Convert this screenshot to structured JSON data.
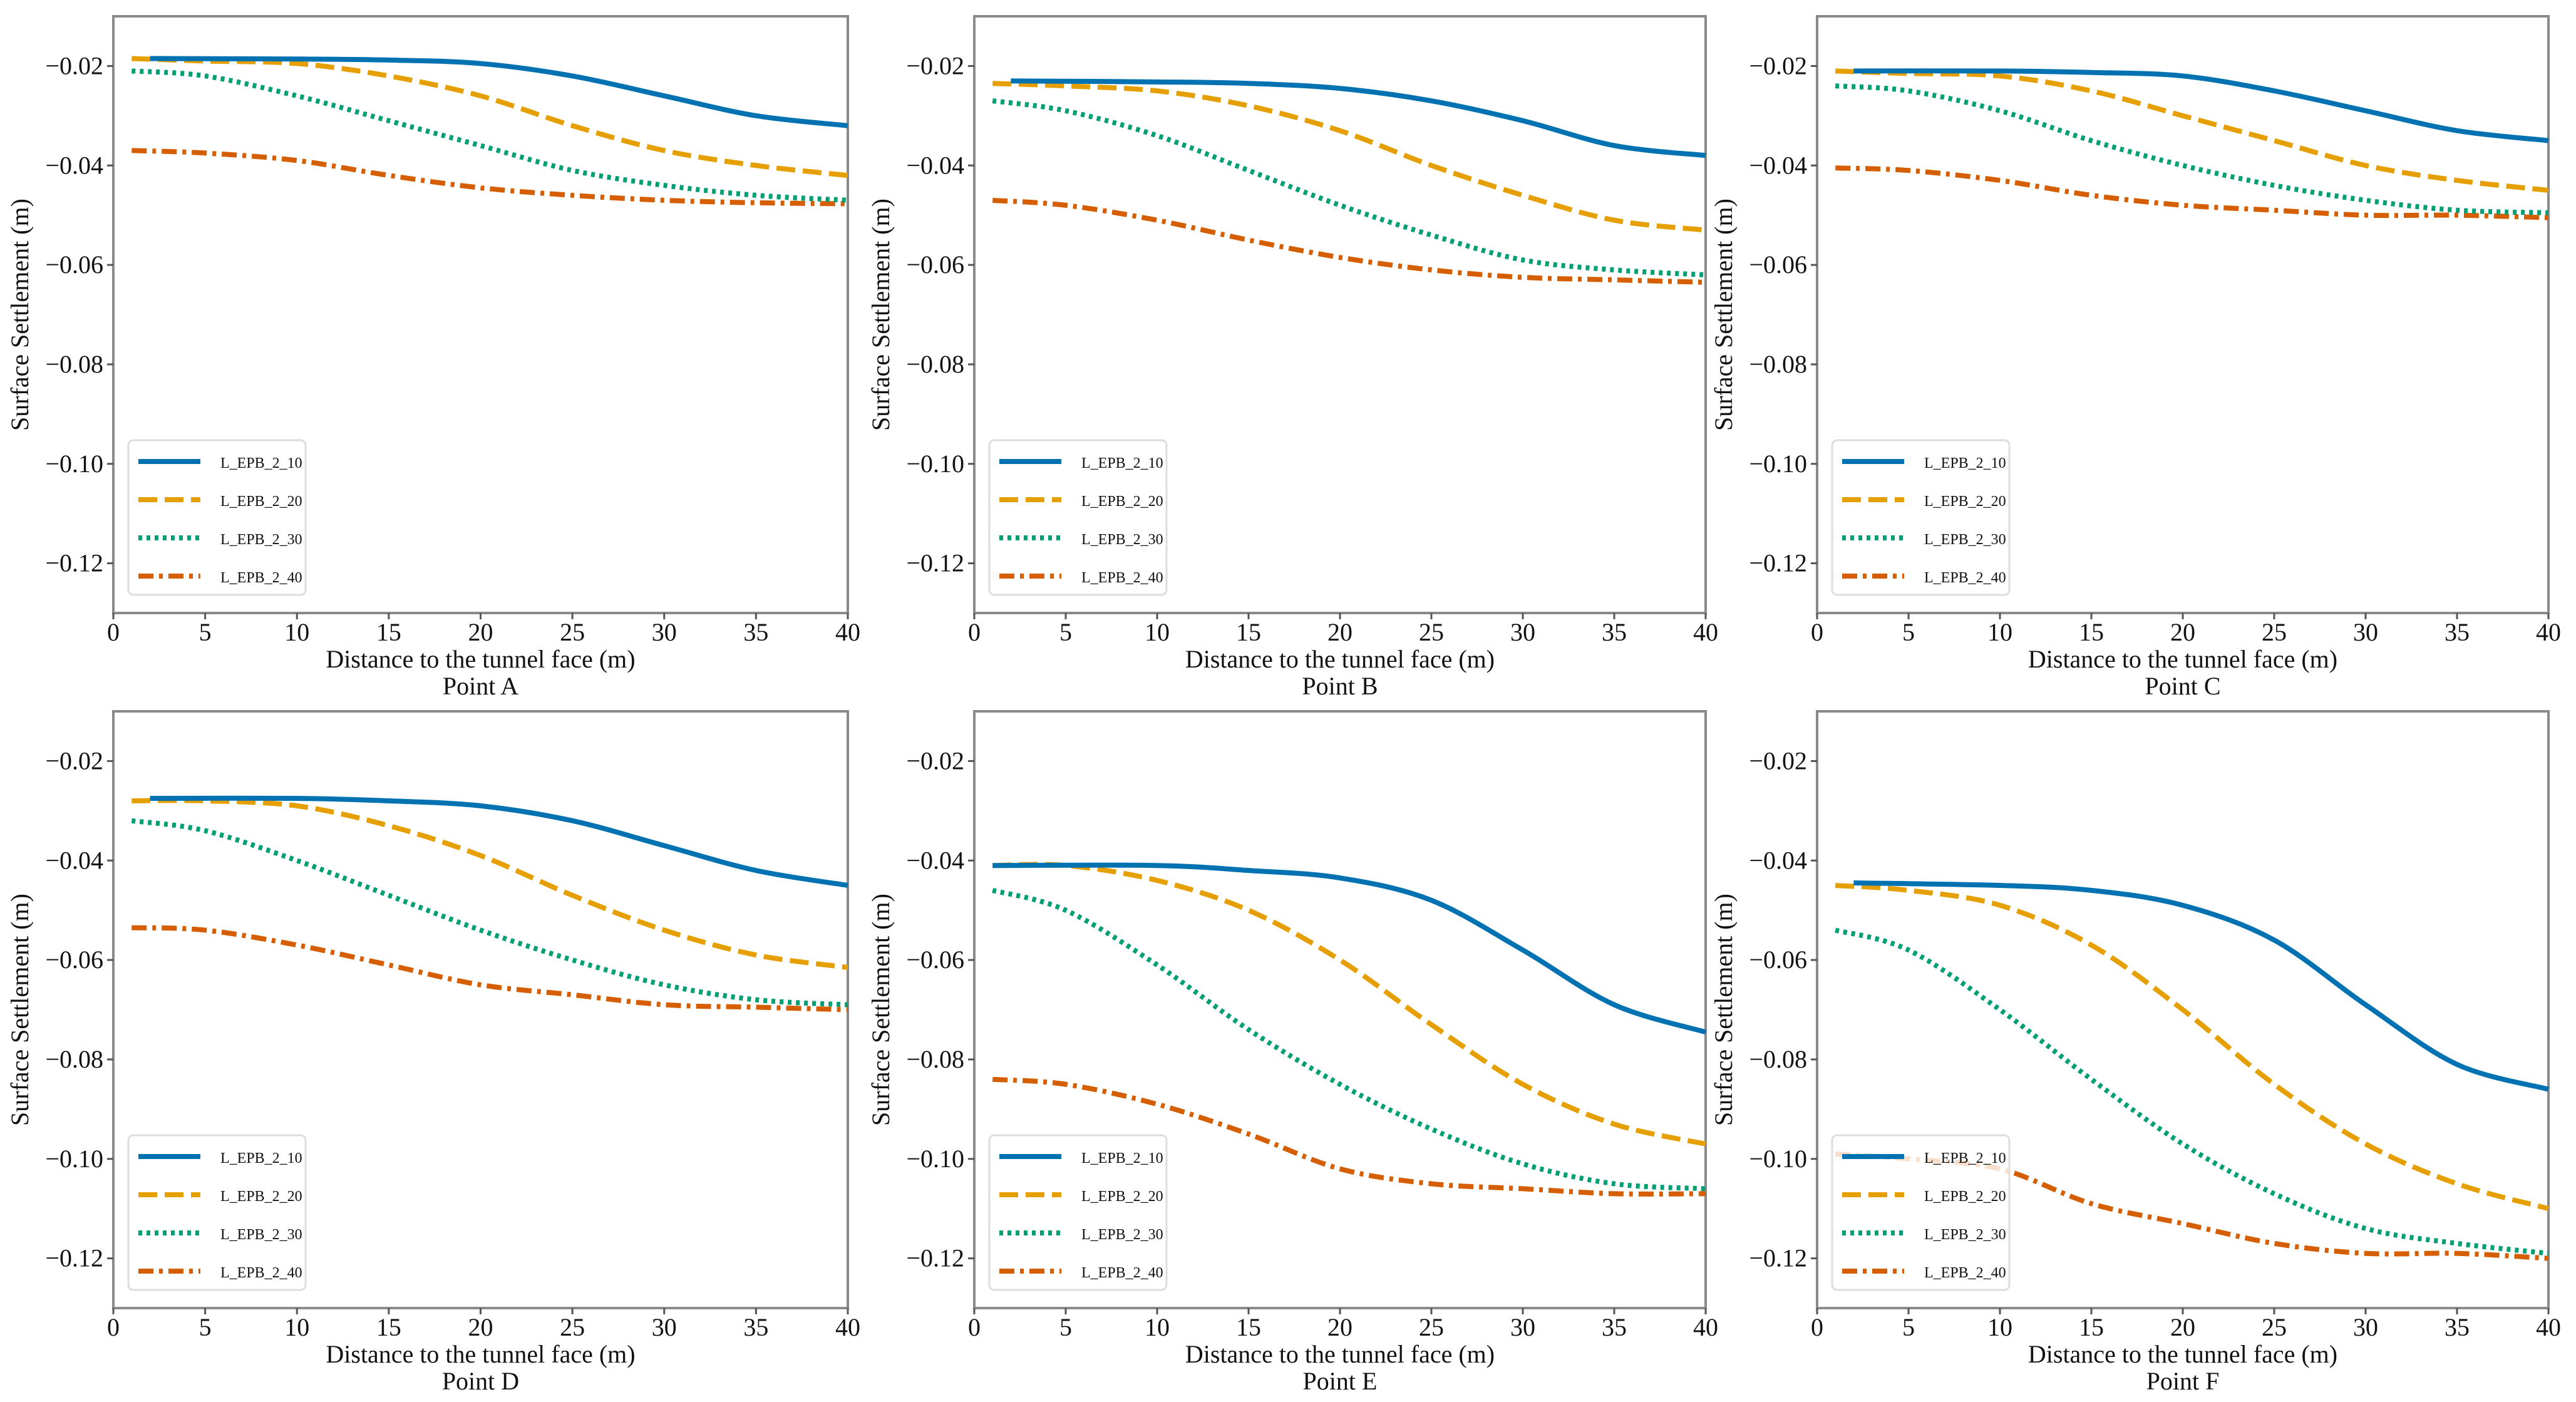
{
  "colors": {
    "L_EPB_2_10": "#0072B2",
    "L_EPB_2_20": "#E69F00",
    "L_EPB_2_30": "#009E73",
    "L_EPB_2_40": "#D55E00"
  },
  "chart_data": [
    {
      "type": "line",
      "title": "Point A",
      "xlabel": "Distance to the tunnel face (m)",
      "ylabel": "Surface Settlement (m)",
      "xlim": [
        0,
        40
      ],
      "ylim": [
        -0.13,
        -0.01
      ],
      "xticks": [
        0,
        5,
        10,
        15,
        20,
        25,
        30,
        35,
        40
      ],
      "yticks": [
        -0.02,
        -0.04,
        -0.06,
        -0.08,
        -0.1,
        -0.12
      ],
      "legend": "lower-left",
      "grid": false,
      "series": [
        {
          "name": "L_EPB_2_10",
          "style": "solid",
          "x": [
            2,
            10,
            15,
            20,
            25,
            30,
            35,
            40
          ],
          "y": [
            -0.0185,
            -0.0186,
            -0.0188,
            -0.0195,
            -0.022,
            -0.026,
            -0.03,
            -0.032
          ]
        },
        {
          "name": "L_EPB_2_20",
          "style": "dashed",
          "x": [
            1,
            5,
            10,
            15,
            20,
            25,
            30,
            35,
            40
          ],
          "y": [
            -0.0185,
            -0.019,
            -0.0195,
            -0.022,
            -0.026,
            -0.032,
            -0.037,
            -0.04,
            -0.042
          ]
        },
        {
          "name": "L_EPB_2_30",
          "style": "dotted",
          "x": [
            1,
            5,
            10,
            15,
            20,
            25,
            30,
            35,
            40
          ],
          "y": [
            -0.021,
            -0.022,
            -0.026,
            -0.031,
            -0.036,
            -0.041,
            -0.044,
            -0.046,
            -0.047
          ]
        },
        {
          "name": "L_EPB_2_40",
          "style": "dashdot",
          "x": [
            1,
            5,
            10,
            15,
            20,
            25,
            30,
            35,
            40
          ],
          "y": [
            -0.037,
            -0.0375,
            -0.039,
            -0.042,
            -0.0445,
            -0.046,
            -0.047,
            -0.0475,
            -0.0477
          ]
        }
      ]
    },
    {
      "type": "line",
      "title": "Point B",
      "xlabel": "Distance to the tunnel face (m)",
      "ylabel": "Surface Settlement (m)",
      "xlim": [
        0,
        40
      ],
      "ylim": [
        -0.13,
        -0.01
      ],
      "xticks": [
        0,
        5,
        10,
        15,
        20,
        25,
        30,
        35,
        40
      ],
      "yticks": [
        -0.02,
        -0.04,
        -0.06,
        -0.08,
        -0.1,
        -0.12
      ],
      "legend": "lower-left",
      "grid": false,
      "series": [
        {
          "name": "L_EPB_2_10",
          "style": "solid",
          "x": [
            2,
            10,
            15,
            20,
            25,
            30,
            35,
            40
          ],
          "y": [
            -0.023,
            -0.0232,
            -0.0235,
            -0.0245,
            -0.027,
            -0.031,
            -0.036,
            -0.038
          ]
        },
        {
          "name": "L_EPB_2_20",
          "style": "dashed",
          "x": [
            1,
            5,
            10,
            15,
            20,
            25,
            30,
            35,
            40
          ],
          "y": [
            -0.0235,
            -0.024,
            -0.025,
            -0.028,
            -0.033,
            -0.04,
            -0.046,
            -0.051,
            -0.053
          ]
        },
        {
          "name": "L_EPB_2_30",
          "style": "dotted",
          "x": [
            1,
            5,
            10,
            15,
            20,
            25,
            30,
            35,
            40
          ],
          "y": [
            -0.027,
            -0.029,
            -0.034,
            -0.041,
            -0.048,
            -0.054,
            -0.059,
            -0.061,
            -0.062
          ]
        },
        {
          "name": "L_EPB_2_40",
          "style": "dashdot",
          "x": [
            1,
            5,
            10,
            15,
            20,
            25,
            30,
            35,
            40
          ],
          "y": [
            -0.047,
            -0.048,
            -0.051,
            -0.055,
            -0.0585,
            -0.061,
            -0.0625,
            -0.063,
            -0.0635
          ]
        }
      ]
    },
    {
      "type": "line",
      "title": "Point C",
      "xlabel": "Distance to the tunnel face (m)",
      "ylabel": "Surface Settlement (m)",
      "xlim": [
        0,
        40
      ],
      "ylim": [
        -0.13,
        -0.01
      ],
      "xticks": [
        0,
        5,
        10,
        15,
        20,
        25,
        30,
        35,
        40
      ],
      "yticks": [
        -0.02,
        -0.04,
        -0.06,
        -0.08,
        -0.1,
        -0.12
      ],
      "legend": "lower-left",
      "grid": false,
      "series": [
        {
          "name": "L_EPB_2_10",
          "style": "solid",
          "x": [
            2,
            10,
            15,
            20,
            25,
            30,
            35,
            40
          ],
          "y": [
            -0.021,
            -0.021,
            -0.0213,
            -0.022,
            -0.025,
            -0.029,
            -0.033,
            -0.035
          ]
        },
        {
          "name": "L_EPB_2_20",
          "style": "dashed",
          "x": [
            1,
            5,
            10,
            15,
            20,
            25,
            30,
            35,
            40
          ],
          "y": [
            -0.021,
            -0.0215,
            -0.022,
            -0.025,
            -0.03,
            -0.035,
            -0.04,
            -0.043,
            -0.045
          ]
        },
        {
          "name": "L_EPB_2_30",
          "style": "dotted",
          "x": [
            1,
            5,
            10,
            15,
            20,
            25,
            30,
            35,
            40
          ],
          "y": [
            -0.024,
            -0.025,
            -0.029,
            -0.035,
            -0.04,
            -0.044,
            -0.047,
            -0.049,
            -0.0495
          ]
        },
        {
          "name": "L_EPB_2_40",
          "style": "dashdot",
          "x": [
            1,
            5,
            10,
            15,
            20,
            25,
            30,
            35,
            40
          ],
          "y": [
            -0.0405,
            -0.041,
            -0.043,
            -0.046,
            -0.048,
            -0.049,
            -0.05,
            -0.05,
            -0.0505
          ]
        }
      ]
    },
    {
      "type": "line",
      "title": "Point D",
      "xlabel": "Distance to the tunnel face (m)",
      "ylabel": "Surface Settlement (m)",
      "xlim": [
        0,
        40
      ],
      "ylim": [
        -0.13,
        -0.01
      ],
      "xticks": [
        0,
        5,
        10,
        15,
        20,
        25,
        30,
        35,
        40
      ],
      "yticks": [
        -0.02,
        -0.04,
        -0.06,
        -0.08,
        -0.1,
        -0.12
      ],
      "legend": "lower-left",
      "grid": false,
      "series": [
        {
          "name": "L_EPB_2_10",
          "style": "solid",
          "x": [
            2,
            10,
            15,
            20,
            25,
            30,
            35,
            40
          ],
          "y": [
            -0.0275,
            -0.0275,
            -0.028,
            -0.029,
            -0.032,
            -0.037,
            -0.042,
            -0.045
          ]
        },
        {
          "name": "L_EPB_2_20",
          "style": "dashed",
          "x": [
            1,
            5,
            10,
            15,
            20,
            25,
            30,
            35,
            40
          ],
          "y": [
            -0.028,
            -0.028,
            -0.029,
            -0.033,
            -0.039,
            -0.047,
            -0.054,
            -0.059,
            -0.0615
          ]
        },
        {
          "name": "L_EPB_2_30",
          "style": "dotted",
          "x": [
            1,
            5,
            10,
            15,
            20,
            25,
            30,
            35,
            40
          ],
          "y": [
            -0.032,
            -0.034,
            -0.04,
            -0.047,
            -0.054,
            -0.06,
            -0.065,
            -0.068,
            -0.069
          ]
        },
        {
          "name": "L_EPB_2_40",
          "style": "dashdot",
          "x": [
            1,
            5,
            10,
            15,
            20,
            25,
            30,
            35,
            40
          ],
          "y": [
            -0.0535,
            -0.054,
            -0.057,
            -0.061,
            -0.065,
            -0.067,
            -0.069,
            -0.0695,
            -0.07
          ]
        }
      ]
    },
    {
      "type": "line",
      "title": "Point E",
      "xlabel": "Distance to the tunnel face (m)",
      "ylabel": "Surface Settlement (m)",
      "xlim": [
        0,
        40
      ],
      "ylim": [
        -0.13,
        -0.01
      ],
      "xticks": [
        0,
        5,
        10,
        15,
        20,
        25,
        30,
        35,
        40
      ],
      "yticks": [
        -0.02,
        -0.04,
        -0.06,
        -0.08,
        -0.1,
        -0.12
      ],
      "legend": "lower-left",
      "grid": false,
      "series": [
        {
          "name": "L_EPB_2_10",
          "style": "solid",
          "x": [
            1,
            10,
            15,
            20,
            25,
            30,
            35,
            40
          ],
          "y": [
            -0.041,
            -0.041,
            -0.042,
            -0.0435,
            -0.048,
            -0.058,
            -0.069,
            -0.0745
          ]
        },
        {
          "name": "L_EPB_2_20",
          "style": "dashed",
          "x": [
            1,
            5,
            10,
            15,
            20,
            25,
            30,
            35,
            40
          ],
          "y": [
            -0.041,
            -0.041,
            -0.044,
            -0.05,
            -0.06,
            -0.073,
            -0.085,
            -0.093,
            -0.097
          ]
        },
        {
          "name": "L_EPB_2_30",
          "style": "dotted",
          "x": [
            1,
            5,
            10,
            15,
            20,
            25,
            30,
            35,
            40
          ],
          "y": [
            -0.046,
            -0.05,
            -0.061,
            -0.074,
            -0.085,
            -0.094,
            -0.101,
            -0.105,
            -0.106
          ]
        },
        {
          "name": "L_EPB_2_40",
          "style": "dashdot",
          "x": [
            1,
            5,
            10,
            15,
            20,
            25,
            30,
            35,
            40
          ],
          "y": [
            -0.084,
            -0.085,
            -0.089,
            -0.095,
            -0.102,
            -0.105,
            -0.106,
            -0.107,
            -0.107
          ]
        }
      ]
    },
    {
      "type": "line",
      "title": "Point F",
      "xlabel": "Distance to the tunnel face (m)",
      "ylabel": "Surface Settlement (m)",
      "xlim": [
        0,
        40
      ],
      "ylim": [
        -0.13,
        -0.01
      ],
      "xticks": [
        0,
        5,
        10,
        15,
        20,
        25,
        30,
        35,
        40
      ],
      "yticks": [
        -0.02,
        -0.04,
        -0.06,
        -0.08,
        -0.1,
        -0.12
      ],
      "legend": "lower-left",
      "grid": false,
      "series": [
        {
          "name": "L_EPB_2_10",
          "style": "solid",
          "x": [
            2,
            10,
            15,
            20,
            25,
            30,
            35,
            40
          ],
          "y": [
            -0.0445,
            -0.045,
            -0.046,
            -0.049,
            -0.056,
            -0.069,
            -0.081,
            -0.086
          ]
        },
        {
          "name": "L_EPB_2_20",
          "style": "dashed",
          "x": [
            1,
            5,
            10,
            15,
            20,
            25,
            30,
            35,
            40
          ],
          "y": [
            -0.045,
            -0.046,
            -0.049,
            -0.057,
            -0.07,
            -0.085,
            -0.097,
            -0.105,
            -0.11
          ]
        },
        {
          "name": "L_EPB_2_30",
          "style": "dotted",
          "x": [
            1,
            5,
            10,
            15,
            20,
            25,
            30,
            35,
            40
          ],
          "y": [
            -0.054,
            -0.058,
            -0.07,
            -0.084,
            -0.097,
            -0.107,
            -0.114,
            -0.117,
            -0.119
          ]
        },
        {
          "name": "L_EPB_2_40",
          "style": "dashdot",
          "x": [
            1,
            5,
            10,
            15,
            20,
            25,
            30,
            35,
            40
          ],
          "y": [
            -0.099,
            -0.1,
            -0.102,
            -0.109,
            -0.113,
            -0.117,
            -0.119,
            -0.119,
            -0.12
          ]
        }
      ]
    }
  ]
}
